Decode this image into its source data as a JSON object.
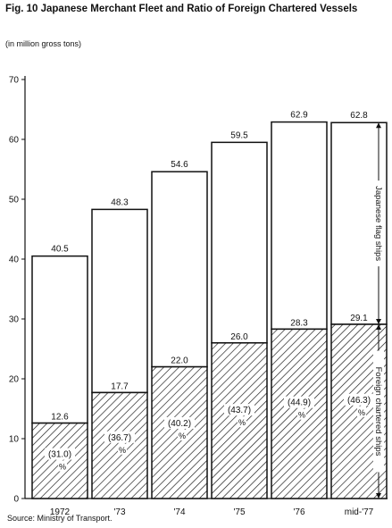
{
  "title": "Fig. 10   Japanese Merchant Fleet and Ratio of Foreign Chartered Vessels",
  "unit_label": "(in million gross tons)",
  "source": "Source:  Ministry of Transport.",
  "chart_data": {
    "type": "bar",
    "title": "Fig. 10   Japanese Merchant Fleet and Ratio of Foreign Chartered Vessels",
    "ylabel": "(in million gross tons)",
    "ylim": [
      0,
      70
    ],
    "yticks": [
      0,
      10,
      20,
      30,
      40,
      50,
      60,
      70
    ],
    "categories": [
      "1972",
      "'73",
      "'74",
      "'75",
      "'76",
      "mid-'77"
    ],
    "series": [
      {
        "name": "Japanese flag ships",
        "values": [
          27.9,
          30.6,
          32.6,
          33.5,
          34.6,
          33.7
        ]
      },
      {
        "name": "Foreign chartered ships",
        "values": [
          12.6,
          17.7,
          22.0,
          26.0,
          28.3,
          29.1
        ]
      }
    ],
    "totals": [
      40.5,
      48.3,
      54.6,
      59.5,
      62.9,
      62.8
    ],
    "total_labels": [
      "40.5",
      "48.3",
      "54.6",
      "59.5",
      "62.9",
      "62.8"
    ],
    "foreign_labels": [
      "12.6",
      "17.7",
      "22.0",
      "26.0",
      "28.3",
      "29.1"
    ],
    "foreign_percent_labels": [
      "(31.0)",
      "(36.7)",
      "(40.2)",
      "(43.7)",
      "(44.9)",
      "(46.3)"
    ],
    "percent_sign": "%",
    "colors": {
      "bar_fill": "#ffffff",
      "stroke": "#111111",
      "hatch": "#111111"
    },
    "grid": false,
    "legend": "none; bracket annotations on right"
  }
}
